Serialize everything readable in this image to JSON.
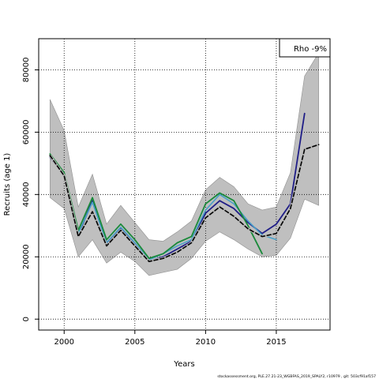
{
  "chart_data": {
    "type": "line",
    "title": "",
    "xlabel": "Years",
    "ylabel": "Recruits (age 1)",
    "xlim": [
      1998.2,
      2018.8
    ],
    "ylim": [
      -3500,
      90000
    ],
    "x_ticks": [
      2000,
      2005,
      2010,
      2015
    ],
    "x_tick_labels": [
      "2000",
      "2005",
      "2010",
      "2015"
    ],
    "y_ticks": [
      0,
      20000,
      40000,
      60000,
      80000
    ],
    "y_tick_labels": [
      "0",
      "20000",
      "40000",
      "60000",
      "80000"
    ],
    "grid": true,
    "legend": {
      "placement": "top-right",
      "text": "Rho -9%"
    },
    "footnote": "stockassessment.org, PLE.27.21-23_WGBFAS_2019_SPALY2, r10979 , git: 503cf91af157",
    "band": {
      "x": [
        1999,
        2000,
        2001,
        2002,
        2003,
        2004,
        2005,
        2006,
        2007,
        2008,
        2009,
        2010,
        2011,
        2012,
        2013,
        2014,
        2015,
        2016,
        2017,
        2018
      ],
      "upper": [
        70500,
        60500,
        36000,
        46500,
        30500,
        36500,
        31000,
        25500,
        25000,
        28000,
        31500,
        41500,
        45500,
        42500,
        37000,
        35000,
        36000,
        47000,
        78000,
        85500
      ],
      "lower": [
        39000,
        35500,
        20000,
        25500,
        18000,
        21500,
        18500,
        14000,
        15000,
        16000,
        19500,
        25000,
        28000,
        25500,
        22500,
        20000,
        20500,
        26000,
        38500,
        36500
      ]
    },
    "series": [
      {
        "color": "#1f1d87",
        "width": 1.8,
        "dash": "",
        "x": [
          1999,
          2000,
          2001,
          2002,
          2003,
          2004,
          2005,
          2006,
          2007,
          2008,
          2009,
          2010,
          2011,
          2012,
          2013,
          2014,
          2015,
          2016,
          2017
        ],
        "values": [
          52000,
          46000,
          27000,
          38000,
          24500,
          29000,
          24000,
          18500,
          20000,
          22500,
          25000,
          34000,
          38000,
          35500,
          31000,
          27500,
          30500,
          37000,
          66000
        ]
      },
      {
        "color": "#4aa0c8",
        "width": 1.6,
        "dash": "",
        "x": [
          1999,
          2000,
          2001,
          2002,
          2003,
          2004,
          2005,
          2006,
          2007,
          2008,
          2009,
          2010,
          2011,
          2012,
          2013,
          2014,
          2015
        ],
        "values": [
          52500,
          46000,
          27500,
          37500,
          24500,
          29500,
          24500,
          19000,
          21000,
          23500,
          25500,
          35000,
          40000,
          37000,
          31500,
          27000,
          25500
        ]
      },
      {
        "color": "#1a8a3a",
        "width": 1.8,
        "dash": "",
        "x": [
          1999,
          2000,
          2001,
          2002,
          2003,
          2004,
          2005,
          2006,
          2007,
          2008,
          2009,
          2010,
          2011,
          2012,
          2013,
          2014
        ],
        "values": [
          53000,
          47000,
          28500,
          39000,
          25500,
          30500,
          25500,
          19500,
          21000,
          24500,
          26500,
          37000,
          40500,
          38000,
          30000,
          21000
        ]
      },
      {
        "color": "#000000",
        "width": 1.6,
        "dash": "5,3",
        "halo": "#b8b8b8",
        "x": [
          1999,
          2000,
          2001,
          2002,
          2003,
          2004,
          2005,
          2006,
          2007,
          2008,
          2009,
          2010,
          2011,
          2012,
          2013,
          2014,
          2015,
          2016,
          2017,
          2018
        ],
        "values": [
          52500,
          46000,
          26500,
          34500,
          23500,
          28500,
          23500,
          18500,
          19500,
          21500,
          24500,
          32500,
          36000,
          33000,
          29000,
          26500,
          27500,
          35500,
          54500,
          56000
        ]
      }
    ]
  }
}
